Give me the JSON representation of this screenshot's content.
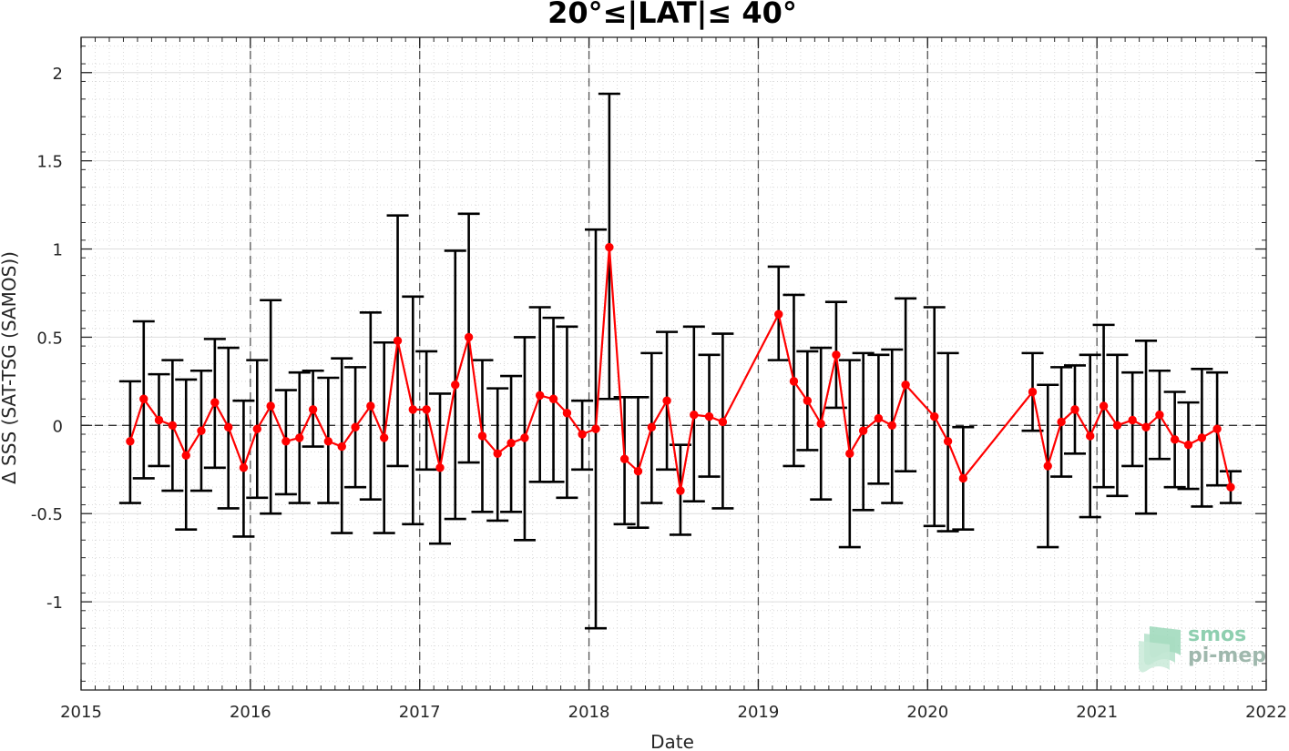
{
  "chart_data": {
    "type": "line",
    "title": "20°≤|LAT|≤ 40°",
    "xlabel": "Date",
    "ylabel": "Δ SSS (SAT-TSG (SAMOS))",
    "xlim": [
      2015,
      2022
    ],
    "ylim": [
      -1.5,
      2.2
    ],
    "x_ticks": [
      2015,
      2016,
      2017,
      2018,
      2019,
      2020,
      2021,
      2022
    ],
    "x_tick_labels": [
      "2015",
      "2016",
      "2017",
      "2018",
      "2019",
      "2020",
      "2021",
      "2022"
    ],
    "y_ticks": [
      -1,
      -0.5,
      0,
      0.5,
      1,
      1.5,
      2
    ],
    "y_tick_labels": [
      "-1",
      "-0.5",
      "0",
      "0.5",
      "1",
      "1.5",
      "2"
    ],
    "grid": true,
    "zero_line": 0,
    "year_lines": [
      2016,
      2017,
      2018,
      2019,
      2020,
      2021
    ],
    "colors": {
      "series": "#ff0000",
      "errorbar": "#000000",
      "grid": "#d9d9d9"
    },
    "series": [
      {
        "points": [
          {
            "x": 2015.29,
            "y": -0.09,
            "low": -0.44,
            "high": 0.25
          },
          {
            "x": 2015.37,
            "y": 0.15,
            "low": -0.3,
            "high": 0.59
          },
          {
            "x": 2015.46,
            "y": 0.03,
            "low": -0.23,
            "high": 0.29
          },
          {
            "x": 2015.54,
            "y": 0.0,
            "low": -0.37,
            "high": 0.37
          },
          {
            "x": 2015.62,
            "y": -0.17,
            "low": -0.59,
            "high": 0.26
          },
          {
            "x": 2015.71,
            "y": -0.03,
            "low": -0.37,
            "high": 0.31
          },
          {
            "x": 2015.79,
            "y": 0.13,
            "low": -0.24,
            "high": 0.49
          },
          {
            "x": 2015.87,
            "y": -0.01,
            "low": -0.47,
            "high": 0.44
          },
          {
            "x": 2015.96,
            "y": -0.24,
            "low": -0.63,
            "high": 0.14
          },
          {
            "x": 2016.04,
            "y": -0.02,
            "low": -0.41,
            "high": 0.37
          },
          {
            "x": 2016.12,
            "y": 0.11,
            "low": -0.5,
            "high": 0.71
          },
          {
            "x": 2016.21,
            "y": -0.09,
            "low": -0.39,
            "high": 0.2
          },
          {
            "x": 2016.29,
            "y": -0.07,
            "low": -0.44,
            "high": 0.3
          },
          {
            "x": 2016.37,
            "y": 0.09,
            "low": -0.12,
            "high": 0.31
          },
          {
            "x": 2016.46,
            "y": -0.09,
            "low": -0.44,
            "high": 0.27
          },
          {
            "x": 2016.54,
            "y": -0.12,
            "low": -0.61,
            "high": 0.38
          },
          {
            "x": 2016.62,
            "y": -0.01,
            "low": -0.35,
            "high": 0.33
          },
          {
            "x": 2016.71,
            "y": 0.11,
            "low": -0.42,
            "high": 0.64
          },
          {
            "x": 2016.79,
            "y": -0.07,
            "low": -0.61,
            "high": 0.47
          },
          {
            "x": 2016.87,
            "y": 0.48,
            "low": -0.23,
            "high": 1.19
          },
          {
            "x": 2016.96,
            "y": 0.09,
            "low": -0.56,
            "high": 0.73
          },
          {
            "x": 2017.04,
            "y": 0.09,
            "low": -0.25,
            "high": 0.42
          },
          {
            "x": 2017.12,
            "y": -0.24,
            "low": -0.67,
            "high": 0.18
          },
          {
            "x": 2017.21,
            "y": 0.23,
            "low": -0.53,
            "high": 0.99
          },
          {
            "x": 2017.29,
            "y": 0.5,
            "low": -0.21,
            "high": 1.2
          },
          {
            "x": 2017.37,
            "y": -0.06,
            "low": -0.49,
            "high": 0.37
          },
          {
            "x": 2017.46,
            "y": -0.16,
            "low": -0.54,
            "high": 0.21
          },
          {
            "x": 2017.54,
            "y": -0.1,
            "low": -0.49,
            "high": 0.28
          },
          {
            "x": 2017.62,
            "y": -0.07,
            "low": -0.65,
            "high": 0.5
          },
          {
            "x": 2017.71,
            "y": 0.17,
            "low": -0.32,
            "high": 0.67
          },
          {
            "x": 2017.79,
            "y": 0.15,
            "low": -0.32,
            "high": 0.61
          },
          {
            "x": 2017.87,
            "y": 0.07,
            "low": -0.41,
            "high": 0.56
          },
          {
            "x": 2017.96,
            "y": -0.05,
            "low": -0.25,
            "high": 0.14
          },
          {
            "x": 2018.04,
            "y": -0.02,
            "low": -1.15,
            "high": 1.11
          },
          {
            "x": 2018.12,
            "y": 1.01,
            "low": 0.15,
            "high": 1.88
          },
          {
            "x": 2018.21,
            "y": -0.19,
            "low": -0.56,
            "high": 0.16
          },
          {
            "x": 2018.29,
            "y": -0.26,
            "low": -0.58,
            "high": 0.16
          },
          {
            "x": 2018.37,
            "y": -0.01,
            "low": -0.44,
            "high": 0.41
          },
          {
            "x": 2018.46,
            "y": 0.14,
            "low": -0.25,
            "high": 0.53
          },
          {
            "x": 2018.54,
            "y": -0.37,
            "low": -0.62,
            "high": -0.11
          },
          {
            "x": 2018.62,
            "y": 0.06,
            "low": -0.43,
            "high": 0.56
          },
          {
            "x": 2018.71,
            "y": 0.05,
            "low": -0.29,
            "high": 0.4
          },
          {
            "x": 2018.79,
            "y": 0.02,
            "low": -0.47,
            "high": 0.52
          },
          {
            "x": 2019.12,
            "y": 0.63,
            "low": 0.37,
            "high": 0.9
          },
          {
            "x": 2019.21,
            "y": 0.25,
            "low": -0.23,
            "high": 0.74
          },
          {
            "x": 2019.29,
            "y": 0.14,
            "low": -0.14,
            "high": 0.42
          },
          {
            "x": 2019.37,
            "y": 0.01,
            "low": -0.42,
            "high": 0.44
          },
          {
            "x": 2019.46,
            "y": 0.4,
            "low": 0.1,
            "high": 0.7
          },
          {
            "x": 2019.54,
            "y": -0.16,
            "low": -0.69,
            "high": 0.37
          },
          {
            "x": 2019.62,
            "y": -0.03,
            "low": -0.48,
            "high": 0.41
          },
          {
            "x": 2019.71,
            "y": 0.04,
            "low": -0.33,
            "high": 0.4
          },
          {
            "x": 2019.79,
            "y": 0.0,
            "low": -0.44,
            "high": 0.43
          },
          {
            "x": 2019.87,
            "y": 0.23,
            "low": -0.26,
            "high": 0.72
          },
          {
            "x": 2020.04,
            "y": 0.05,
            "low": -0.57,
            "high": 0.67
          },
          {
            "x": 2020.12,
            "y": -0.09,
            "low": -0.6,
            "high": 0.41
          },
          {
            "x": 2020.21,
            "y": -0.3,
            "low": -0.59,
            "high": -0.01
          },
          {
            "x": 2020.62,
            "y": 0.19,
            "low": -0.03,
            "high": 0.41
          },
          {
            "x": 2020.71,
            "y": -0.23,
            "low": -0.69,
            "high": 0.23
          },
          {
            "x": 2020.79,
            "y": 0.02,
            "low": -0.29,
            "high": 0.33
          },
          {
            "x": 2020.87,
            "y": 0.09,
            "low": -0.16,
            "high": 0.34
          },
          {
            "x": 2020.96,
            "y": -0.06,
            "low": -0.52,
            "high": 0.4
          },
          {
            "x": 2021.04,
            "y": 0.11,
            "low": -0.35,
            "high": 0.57
          },
          {
            "x": 2021.12,
            "y": 0.0,
            "low": -0.4,
            "high": 0.4
          },
          {
            "x": 2021.21,
            "y": 0.03,
            "low": -0.23,
            "high": 0.3
          },
          {
            "x": 2021.29,
            "y": -0.01,
            "low": -0.5,
            "high": 0.48
          },
          {
            "x": 2021.37,
            "y": 0.06,
            "low": -0.19,
            "high": 0.31
          },
          {
            "x": 2021.46,
            "y": -0.08,
            "low": -0.35,
            "high": 0.19
          },
          {
            "x": 2021.54,
            "y": -0.11,
            "low": -0.36,
            "high": 0.13
          },
          {
            "x": 2021.62,
            "y": -0.07,
            "low": -0.46,
            "high": 0.32
          },
          {
            "x": 2021.71,
            "y": -0.02,
            "low": -0.34,
            "high": 0.3
          },
          {
            "x": 2021.79,
            "y": -0.35,
            "low": -0.44,
            "high": -0.26
          }
        ]
      }
    ]
  },
  "logo": {
    "line1": "smos",
    "line2": "pi-mep"
  }
}
